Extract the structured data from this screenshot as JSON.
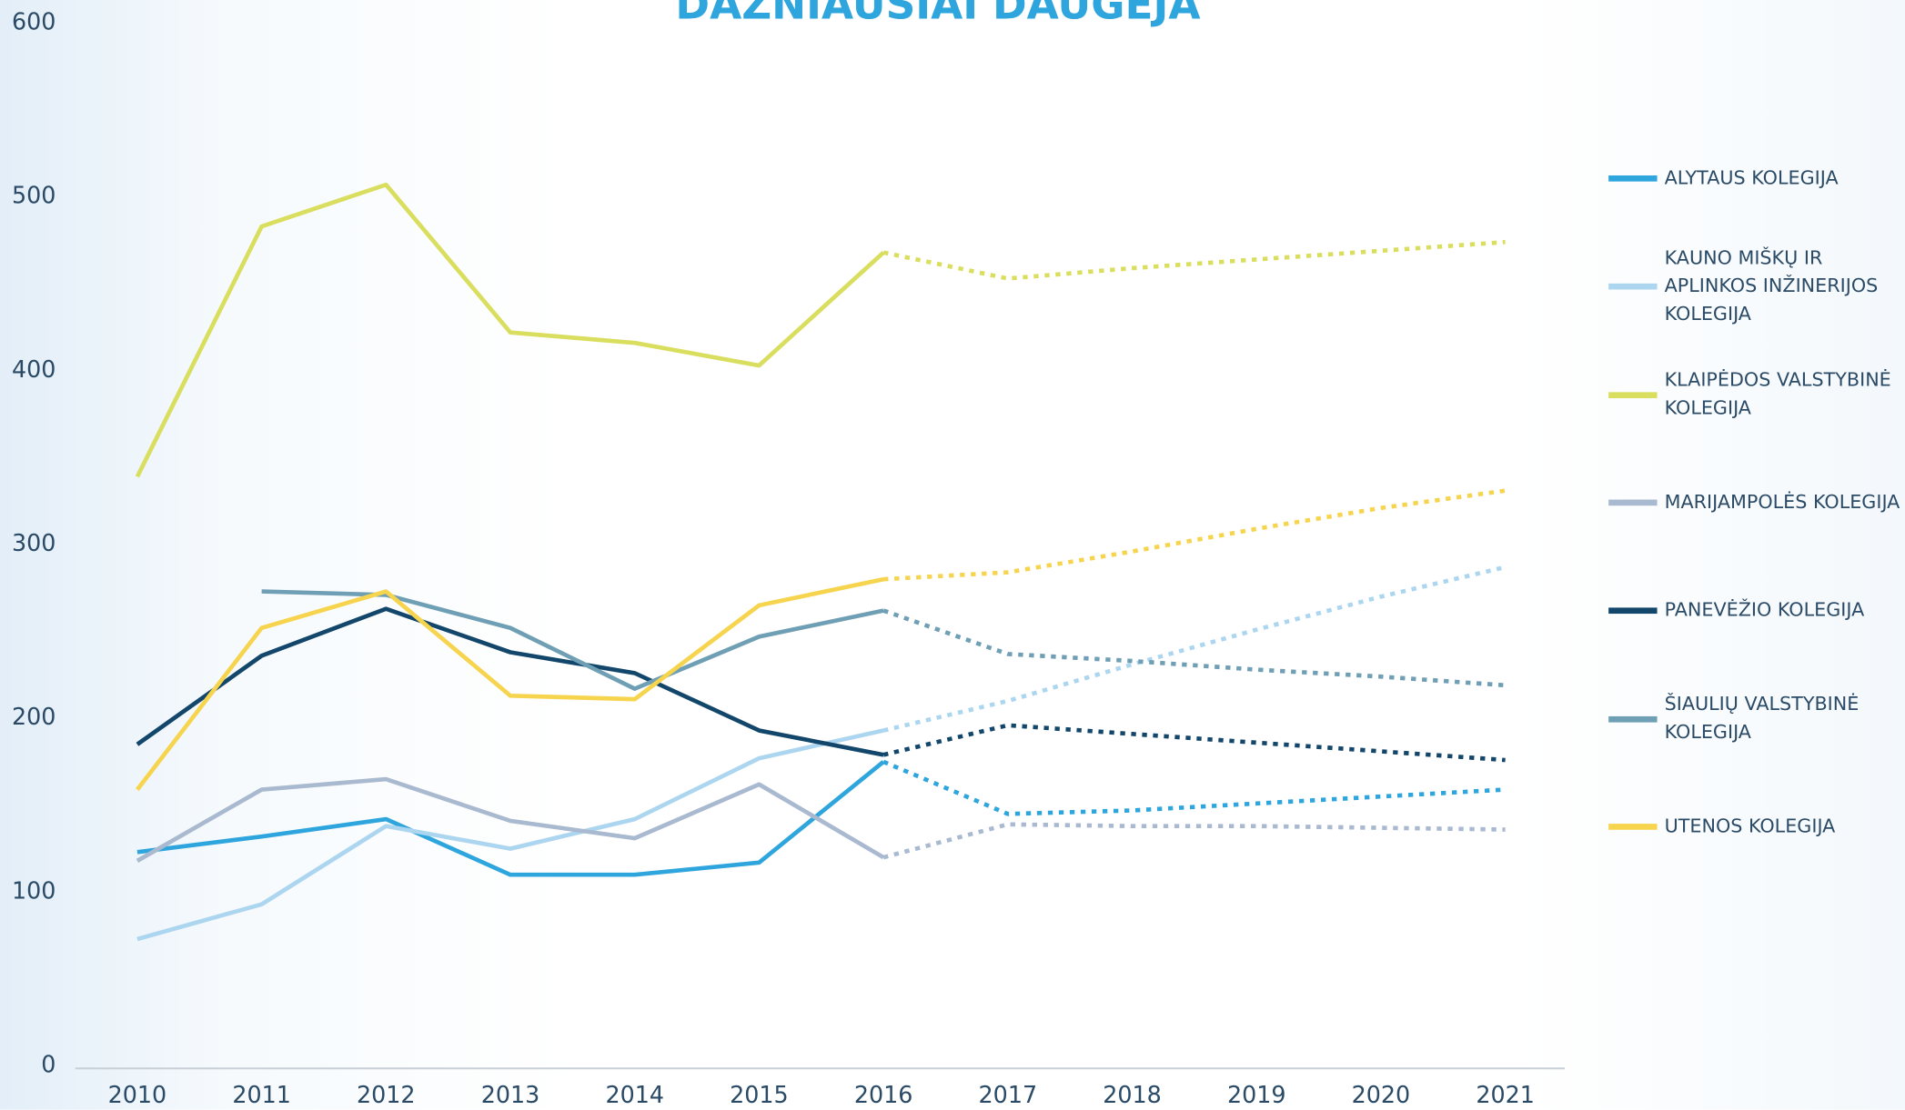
{
  "chart_data": {
    "type": "line",
    "title": "DAŽNIAUSIAI DAUGĖJA",
    "categories": [
      "2010",
      "2011",
      "2012",
      "2013",
      "2014",
      "2015",
      "2016",
      "2017",
      "2018",
      "2019",
      "2020",
      "2021"
    ],
    "dashed_from": "2016",
    "ylim": [
      0,
      600
    ],
    "yticks": [
      0,
      100,
      200,
      300,
      400,
      500,
      600
    ],
    "series": [
      {
        "name": "ALYTAUS KOLEGIJA",
        "color": "#2ea5dc",
        "values": [
          123,
          132,
          142,
          110,
          110,
          117,
          175,
          145,
          147,
          151,
          155,
          159
        ]
      },
      {
        "name": "KAUNO MIŠKŲ IR APLINKOS INŽINERIJOS KOLEGIJA",
        "color": "#acd6f0",
        "values": [
          73,
          93,
          138,
          125,
          142,
          177,
          193,
          210,
          231,
          251,
          270,
          287
        ]
      },
      {
        "name": "KLAIPĖDOS VALSTYBINĖ KOLEGIJA",
        "color": "#d9de5e",
        "values": [
          339,
          483,
          507,
          422,
          416,
          403,
          468,
          453,
          459,
          464,
          469,
          474
        ]
      },
      {
        "name": "MARIJAMPOLĖS KOLEGIJA",
        "color": "#a9b9cf",
        "values": [
          118,
          159,
          165,
          141,
          131,
          162,
          120,
          139,
          138,
          138,
          137,
          136
        ]
      },
      {
        "name": "PANEVĖŽIO KOLEGIJA",
        "color": "#12466b",
        "values": [
          185,
          236,
          263,
          238,
          226,
          193,
          179,
          196,
          191,
          186,
          181,
          176
        ]
      },
      {
        "name": "ŠIAULIŲ VALSTYBINĖ KOLEGIJA",
        "color": "#6f9fb4",
        "values": [
          null,
          273,
          271,
          252,
          217,
          247,
          262,
          237,
          233,
          228,
          224,
          219
        ]
      },
      {
        "name": "UTENOS KOLEGIJA",
        "color": "#f7d44e",
        "values": [
          159,
          252,
          273,
          213,
          211,
          265,
          280,
          284,
          296,
          309,
          321,
          331
        ]
      }
    ]
  }
}
